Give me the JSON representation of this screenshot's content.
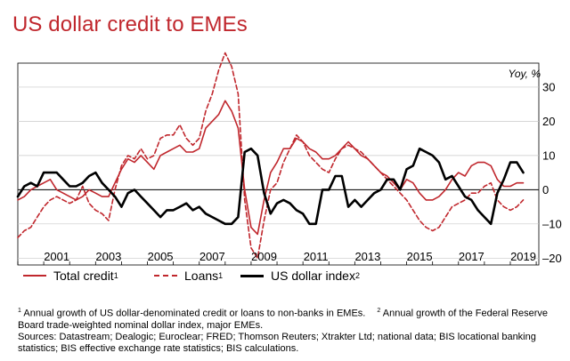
{
  "title": "US dollar credit to EMEs",
  "colors": {
    "accent": "#c0272d",
    "black": "#000000",
    "grid": "#c8c8c8"
  },
  "chart_data": {
    "type": "line",
    "unit_label": "Yoy, %",
    "ylim": [
      -22,
      37
    ],
    "yticks": [
      30,
      20,
      10,
      0,
      -10,
      -20
    ],
    "xlim": [
      2000.0,
      2020.1
    ],
    "xticks": [
      2001,
      2003,
      2005,
      2007,
      2009,
      2011,
      2013,
      2015,
      2017,
      2019
    ],
    "grid": "horizontal",
    "legend_position": "bottom",
    "series": [
      {
        "name": "Total credit",
        "name_sup": "1",
        "style": "solid",
        "color": "#c0272d",
        "x": [
          2000.0,
          2000.25,
          2000.5,
          2000.75,
          2001.0,
          2001.25,
          2001.5,
          2001.75,
          2002.0,
          2002.25,
          2002.5,
          2002.75,
          2003.0,
          2003.25,
          2003.5,
          2003.75,
          2004.0,
          2004.25,
          2004.5,
          2004.75,
          2005.0,
          2005.25,
          2005.5,
          2005.75,
          2006.0,
          2006.25,
          2006.5,
          2006.75,
          2007.0,
          2007.25,
          2007.5,
          2007.75,
          2008.0,
          2008.25,
          2008.5,
          2008.75,
          2009.0,
          2009.25,
          2009.5,
          2009.75,
          2010.0,
          2010.25,
          2010.5,
          2010.75,
          2011.0,
          2011.25,
          2011.5,
          2011.75,
          2012.0,
          2012.25,
          2012.5,
          2012.75,
          2013.0,
          2013.25,
          2013.5,
          2013.75,
          2014.0,
          2014.25,
          2014.5,
          2014.75,
          2015.0,
          2015.25,
          2015.5,
          2015.75,
          2016.0,
          2016.25,
          2016.5,
          2016.75,
          2017.0,
          2017.25,
          2017.5,
          2017.75,
          2018.0,
          2018.25,
          2018.5,
          2018.75,
          2019.0,
          2019.25,
          2019.5
        ],
        "y": [
          -3,
          -2,
          0,
          1,
          2,
          3,
          0,
          -1,
          -2,
          -3,
          -2,
          0,
          -1,
          -2,
          -2,
          2,
          6,
          9,
          8,
          10,
          8,
          6,
          10,
          11,
          12,
          13,
          11,
          11,
          12,
          18,
          20,
          22,
          26,
          23,
          18,
          0,
          -11,
          -13,
          -3,
          5,
          8,
          12,
          12,
          15,
          14,
          12,
          11,
          9,
          9,
          10,
          12,
          14,
          12,
          10,
          9,
          7,
          5,
          4,
          2,
          0,
          3,
          2,
          -1,
          -3,
          -3,
          -2,
          0,
          3,
          5,
          4,
          7,
          8,
          8,
          7,
          3,
          1,
          1,
          2,
          2
        ]
      },
      {
        "name": "Loans",
        "name_sup": "1",
        "style": "dashed",
        "color": "#c0272d",
        "x": [
          2000.0,
          2000.25,
          2000.5,
          2000.75,
          2001.0,
          2001.25,
          2001.5,
          2001.75,
          2002.0,
          2002.25,
          2002.5,
          2002.75,
          2003.0,
          2003.25,
          2003.5,
          2003.75,
          2004.0,
          2004.25,
          2004.5,
          2004.75,
          2005.0,
          2005.25,
          2005.5,
          2005.75,
          2006.0,
          2006.25,
          2006.5,
          2006.75,
          2007.0,
          2007.25,
          2007.5,
          2007.75,
          2008.0,
          2008.25,
          2008.5,
          2008.75,
          2009.0,
          2009.25,
          2009.5,
          2009.75,
          2010.0,
          2010.25,
          2010.5,
          2010.75,
          2011.0,
          2011.25,
          2011.5,
          2011.75,
          2012.0,
          2012.25,
          2012.5,
          2012.75,
          2013.0,
          2013.25,
          2013.5,
          2013.75,
          2014.0,
          2014.25,
          2014.5,
          2014.75,
          2015.0,
          2015.25,
          2015.5,
          2015.75,
          2016.0,
          2016.25,
          2016.5,
          2016.75,
          2017.0,
          2017.25,
          2017.5,
          2017.75,
          2018.0,
          2018.25,
          2018.5,
          2018.75,
          2019.0,
          2019.25,
          2019.5
        ],
        "y": [
          -14,
          -12,
          -11,
          -8,
          -5,
          -3,
          -2,
          -3,
          -4,
          -3,
          1,
          -4,
          -6,
          -7,
          -9,
          0,
          7,
          10,
          9,
          12,
          9,
          10,
          15,
          16,
          16,
          19,
          15,
          13,
          15,
          23,
          28,
          35,
          40,
          36,
          28,
          -3,
          -17,
          -20,
          -9,
          0,
          2,
          8,
          12,
          16,
          14,
          10,
          8,
          6,
          5,
          9,
          12,
          13,
          12,
          11,
          9,
          7,
          5,
          3,
          1,
          -1,
          -3,
          -6,
          -9,
          -11,
          -12,
          -11,
          -8,
          -5,
          -4,
          -3,
          -1,
          -1,
          1,
          2,
          -3,
          -5,
          -6,
          -5,
          -3
        ]
      },
      {
        "name": "US dollar index",
        "name_sup": "2",
        "style": "solid",
        "color": "#000000",
        "x": [
          2000.0,
          2000.25,
          2000.5,
          2000.75,
          2001.0,
          2001.25,
          2001.5,
          2001.75,
          2002.0,
          2002.25,
          2002.5,
          2002.75,
          2003.0,
          2003.25,
          2003.5,
          2003.75,
          2004.0,
          2004.25,
          2004.5,
          2004.75,
          2005.0,
          2005.25,
          2005.5,
          2005.75,
          2006.0,
          2006.25,
          2006.5,
          2006.75,
          2007.0,
          2007.25,
          2007.5,
          2007.75,
          2008.0,
          2008.25,
          2008.5,
          2008.75,
          2009.0,
          2009.25,
          2009.5,
          2009.75,
          2010.0,
          2010.25,
          2010.5,
          2010.75,
          2011.0,
          2011.25,
          2011.5,
          2011.75,
          2012.0,
          2012.25,
          2012.5,
          2012.75,
          2013.0,
          2013.25,
          2013.5,
          2013.75,
          2014.0,
          2014.25,
          2014.5,
          2014.75,
          2015.0,
          2015.25,
          2015.5,
          2015.75,
          2016.0,
          2016.25,
          2016.5,
          2016.75,
          2017.0,
          2017.25,
          2017.5,
          2017.75,
          2018.0,
          2018.25,
          2018.5,
          2018.75,
          2019.0,
          2019.25,
          2019.5
        ],
        "y": [
          -2,
          1,
          2,
          1,
          5,
          5,
          5,
          3,
          1,
          1,
          2,
          4,
          5,
          2,
          0,
          -2,
          -5,
          -1,
          0,
          -2,
          -4,
          -6,
          -8,
          -6,
          -6,
          -5,
          -4,
          -6,
          -5,
          -7,
          -8,
          -9,
          -10,
          -10,
          -8,
          11,
          12,
          10,
          -1,
          -7,
          -4,
          -3,
          -4,
          -6,
          -7,
          -10,
          -10,
          0,
          0,
          4,
          4,
          -5,
          -3,
          -5,
          -3,
          -1,
          0,
          3,
          3,
          0,
          6,
          7,
          12,
          11,
          10,
          8,
          3,
          4,
          1,
          -2,
          -3,
          -6,
          -8,
          -10,
          -1,
          3,
          8,
          8,
          5
        ]
      }
    ]
  },
  "footnotes": {
    "fn1_mark": "1",
    "fn1_text": "Annual growth of US dollar-denominated credit or loans to non-banks in EMEs.",
    "fn2_mark": "2",
    "fn2_text": "Annual growth of the Federal Reserve Board trade-weighted nominal dollar index, major EMEs.",
    "sources": "Sources: Datastream; Dealogic; Euroclear; FRED; Thomson Reuters; Xtrakter Ltd; national data; BIS locational banking statistics; BIS effective exchange rate statistics; BIS calculations."
  }
}
